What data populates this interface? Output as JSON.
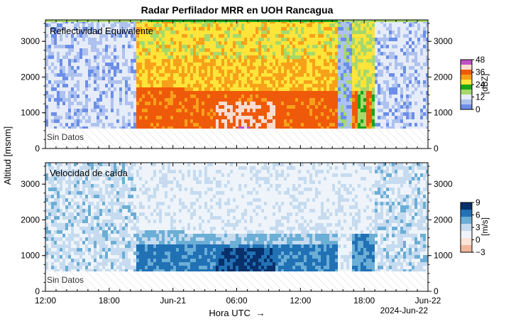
{
  "title": "Radar Perfilador MRR en UOH Rancagua",
  "ylabel": "Altitud [msnm]",
  "xlabel": "Hora UTC",
  "xlabel_arrow": "→",
  "date_label": "2024-Jun-22",
  "no_data_label": "Sin Datos",
  "x_ticks": [
    "12:00",
    "18:00",
    "Jun-21",
    "06:00",
    "12:00",
    "18:00",
    "Jun-22"
  ],
  "y_ticks": [
    "0",
    "1000",
    "2000",
    "3000"
  ],
  "colors": {
    "reflectivity": [
      "#6b8ee8",
      "#aec2f0",
      "#e6ecf8",
      "#a6d96a",
      "#1aa51a",
      "#ffe43a",
      "#f7a11a",
      "#ef5a0a",
      "#fadcd0",
      "#c050c8"
    ],
    "velocity": [
      "#f3b79a",
      "#fbe3d6",
      "#eef4fa",
      "#c6dbef",
      "#6baed6",
      "#2171b5",
      "#08306b"
    ]
  },
  "chart_data": [
    {
      "type": "heatmap",
      "panel_label": "Reflectividad Equivalente",
      "x_range": [
        "2024-06-20 12:00",
        "2024-06-22 00:00"
      ],
      "ylim": [
        0,
        3600
      ],
      "no_data_below_m": 550,
      "colorbar": {
        "label": "[dBZ]",
        "ticks": [
          "48",
          "36",
          "24",
          "12",
          "0"
        ],
        "range": [
          -6,
          48
        ]
      },
      "grid": false
    },
    {
      "type": "heatmap",
      "panel_label": "Velocidad de caída",
      "x_range": [
        "2024-06-20 12:00",
        "2024-06-22 00:00"
      ],
      "ylim": [
        0,
        3600
      ],
      "no_data_below_m": 550,
      "colorbar": {
        "label": "[m/s]",
        "ticks": [
          "9",
          "6",
          "3",
          "0",
          "−3"
        ],
        "range": [
          -3,
          9
        ]
      },
      "grid": false
    }
  ]
}
